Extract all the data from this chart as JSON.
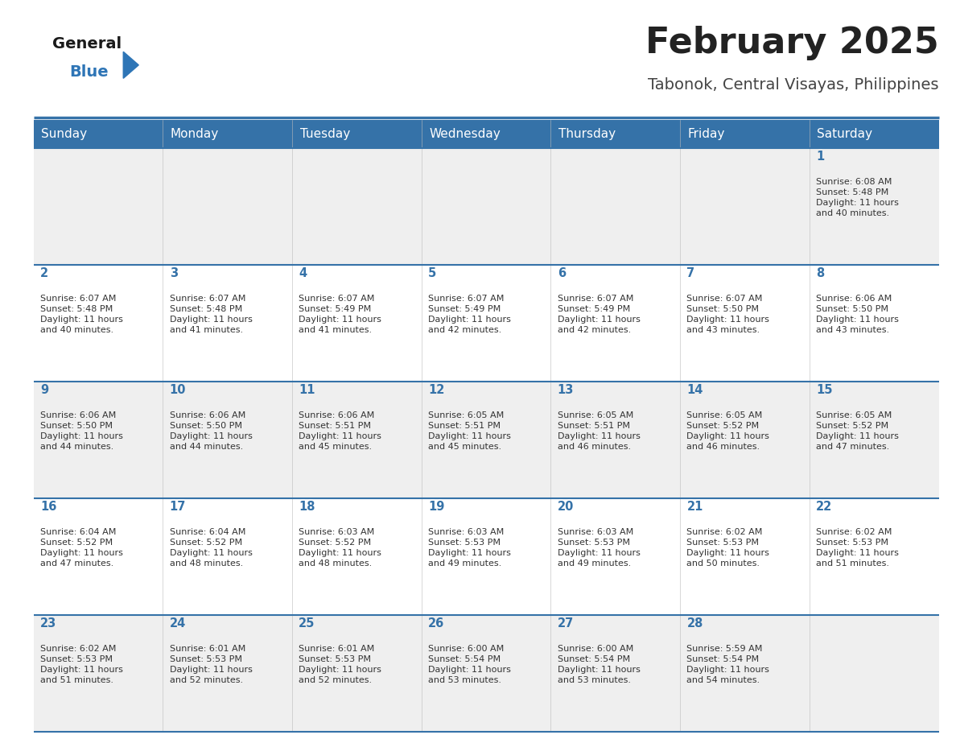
{
  "title": "February 2025",
  "subtitle": "Tabonok, Central Visayas, Philippines",
  "days_of_week": [
    "Sunday",
    "Monday",
    "Tuesday",
    "Wednesday",
    "Thursday",
    "Friday",
    "Saturday"
  ],
  "header_bg": "#3572A8",
  "header_text_color": "#FFFFFF",
  "row_bg_odd": "#EFEFEF",
  "row_bg_even": "#FFFFFF",
  "separator_color": "#3572A8",
  "day_number_color": "#3572A8",
  "cell_text_color": "#333333",
  "title_color": "#222222",
  "subtitle_color": "#444444",
  "logo_general_color": "#1A1A1A",
  "logo_blue_color": "#2E75B6",
  "calendar": [
    [
      {
        "day": 0,
        "sunrise": "",
        "sunset": "",
        "daylight": ""
      },
      {
        "day": 0,
        "sunrise": "",
        "sunset": "",
        "daylight": ""
      },
      {
        "day": 0,
        "sunrise": "",
        "sunset": "",
        "daylight": ""
      },
      {
        "day": 0,
        "sunrise": "",
        "sunset": "",
        "daylight": ""
      },
      {
        "day": 0,
        "sunrise": "",
        "sunset": "",
        "daylight": ""
      },
      {
        "day": 0,
        "sunrise": "",
        "sunset": "",
        "daylight": ""
      },
      {
        "day": 1,
        "sunrise": "Sunrise: 6:08 AM",
        "sunset": "Sunset: 5:48 PM",
        "daylight": "Daylight: 11 hours\nand 40 minutes."
      }
    ],
    [
      {
        "day": 2,
        "sunrise": "Sunrise: 6:07 AM",
        "sunset": "Sunset: 5:48 PM",
        "daylight": "Daylight: 11 hours\nand 40 minutes."
      },
      {
        "day": 3,
        "sunrise": "Sunrise: 6:07 AM",
        "sunset": "Sunset: 5:48 PM",
        "daylight": "Daylight: 11 hours\nand 41 minutes."
      },
      {
        "day": 4,
        "sunrise": "Sunrise: 6:07 AM",
        "sunset": "Sunset: 5:49 PM",
        "daylight": "Daylight: 11 hours\nand 41 minutes."
      },
      {
        "day": 5,
        "sunrise": "Sunrise: 6:07 AM",
        "sunset": "Sunset: 5:49 PM",
        "daylight": "Daylight: 11 hours\nand 42 minutes."
      },
      {
        "day": 6,
        "sunrise": "Sunrise: 6:07 AM",
        "sunset": "Sunset: 5:49 PM",
        "daylight": "Daylight: 11 hours\nand 42 minutes."
      },
      {
        "day": 7,
        "sunrise": "Sunrise: 6:07 AM",
        "sunset": "Sunset: 5:50 PM",
        "daylight": "Daylight: 11 hours\nand 43 minutes."
      },
      {
        "day": 8,
        "sunrise": "Sunrise: 6:06 AM",
        "sunset": "Sunset: 5:50 PM",
        "daylight": "Daylight: 11 hours\nand 43 minutes."
      }
    ],
    [
      {
        "day": 9,
        "sunrise": "Sunrise: 6:06 AM",
        "sunset": "Sunset: 5:50 PM",
        "daylight": "Daylight: 11 hours\nand 44 minutes."
      },
      {
        "day": 10,
        "sunrise": "Sunrise: 6:06 AM",
        "sunset": "Sunset: 5:50 PM",
        "daylight": "Daylight: 11 hours\nand 44 minutes."
      },
      {
        "day": 11,
        "sunrise": "Sunrise: 6:06 AM",
        "sunset": "Sunset: 5:51 PM",
        "daylight": "Daylight: 11 hours\nand 45 minutes."
      },
      {
        "day": 12,
        "sunrise": "Sunrise: 6:05 AM",
        "sunset": "Sunset: 5:51 PM",
        "daylight": "Daylight: 11 hours\nand 45 minutes."
      },
      {
        "day": 13,
        "sunrise": "Sunrise: 6:05 AM",
        "sunset": "Sunset: 5:51 PM",
        "daylight": "Daylight: 11 hours\nand 46 minutes."
      },
      {
        "day": 14,
        "sunrise": "Sunrise: 6:05 AM",
        "sunset": "Sunset: 5:52 PM",
        "daylight": "Daylight: 11 hours\nand 46 minutes."
      },
      {
        "day": 15,
        "sunrise": "Sunrise: 6:05 AM",
        "sunset": "Sunset: 5:52 PM",
        "daylight": "Daylight: 11 hours\nand 47 minutes."
      }
    ],
    [
      {
        "day": 16,
        "sunrise": "Sunrise: 6:04 AM",
        "sunset": "Sunset: 5:52 PM",
        "daylight": "Daylight: 11 hours\nand 47 minutes."
      },
      {
        "day": 17,
        "sunrise": "Sunrise: 6:04 AM",
        "sunset": "Sunset: 5:52 PM",
        "daylight": "Daylight: 11 hours\nand 48 minutes."
      },
      {
        "day": 18,
        "sunrise": "Sunrise: 6:03 AM",
        "sunset": "Sunset: 5:52 PM",
        "daylight": "Daylight: 11 hours\nand 48 minutes."
      },
      {
        "day": 19,
        "sunrise": "Sunrise: 6:03 AM",
        "sunset": "Sunset: 5:53 PM",
        "daylight": "Daylight: 11 hours\nand 49 minutes."
      },
      {
        "day": 20,
        "sunrise": "Sunrise: 6:03 AM",
        "sunset": "Sunset: 5:53 PM",
        "daylight": "Daylight: 11 hours\nand 49 minutes."
      },
      {
        "day": 21,
        "sunrise": "Sunrise: 6:02 AM",
        "sunset": "Sunset: 5:53 PM",
        "daylight": "Daylight: 11 hours\nand 50 minutes."
      },
      {
        "day": 22,
        "sunrise": "Sunrise: 6:02 AM",
        "sunset": "Sunset: 5:53 PM",
        "daylight": "Daylight: 11 hours\nand 51 minutes."
      }
    ],
    [
      {
        "day": 23,
        "sunrise": "Sunrise: 6:02 AM",
        "sunset": "Sunset: 5:53 PM",
        "daylight": "Daylight: 11 hours\nand 51 minutes."
      },
      {
        "day": 24,
        "sunrise": "Sunrise: 6:01 AM",
        "sunset": "Sunset: 5:53 PM",
        "daylight": "Daylight: 11 hours\nand 52 minutes."
      },
      {
        "day": 25,
        "sunrise": "Sunrise: 6:01 AM",
        "sunset": "Sunset: 5:53 PM",
        "daylight": "Daylight: 11 hours\nand 52 minutes."
      },
      {
        "day": 26,
        "sunrise": "Sunrise: 6:00 AM",
        "sunset": "Sunset: 5:54 PM",
        "daylight": "Daylight: 11 hours\nand 53 minutes."
      },
      {
        "day": 27,
        "sunrise": "Sunrise: 6:00 AM",
        "sunset": "Sunset: 5:54 PM",
        "daylight": "Daylight: 11 hours\nand 53 minutes."
      },
      {
        "day": 28,
        "sunrise": "Sunrise: 5:59 AM",
        "sunset": "Sunset: 5:54 PM",
        "daylight": "Daylight: 11 hours\nand 54 minutes."
      },
      {
        "day": 0,
        "sunrise": "",
        "sunset": "",
        "daylight": ""
      }
    ]
  ],
  "fig_width": 11.88,
  "fig_height": 9.18
}
